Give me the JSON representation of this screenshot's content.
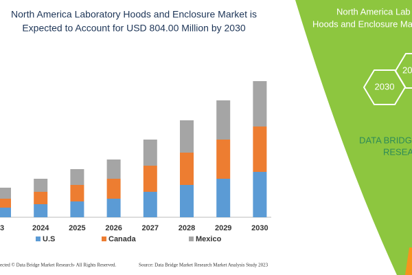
{
  "chart_data": {
    "type": "stacked_bar",
    "title": [
      "North America Laboratory Hoods and Enclosure Market is",
      "Expected to Account for USD 804.00 Million by 2030"
    ],
    "categories": [
      "3",
      "2024",
      "2025",
      "2026",
      "2027",
      "2028",
      "2029",
      "2030"
    ],
    "series": [
      {
        "name": "U.S",
        "color": "#5b9bd5",
        "values": [
          14,
          19,
          23,
          27,
          37,
          47,
          56,
          66
        ]
      },
      {
        "name": "Canada",
        "color": "#ed7d31",
        "values": [
          13,
          18,
          24,
          29,
          38,
          47,
          57,
          66
        ]
      },
      {
        "name": "Mexico",
        "color": "#a5a5a5",
        "values": [
          16,
          19,
          23,
          28,
          38,
          47,
          57,
          66
        ]
      }
    ]
  },
  "side_panel": {
    "heading_lines": [
      "North America Lab",
      "Hoods and Enclosure Ma"
    ],
    "hexagons": [
      "2030",
      "20"
    ],
    "brand_lines": [
      "DATA BRIDGE",
      "RESEA"
    ]
  },
  "footer": {
    "copyright": "ected © Data Bridge Market Research- All Rights Reserved.",
    "source": "Source: Data Bridge Market Research Market Analysis Study 2023"
  }
}
